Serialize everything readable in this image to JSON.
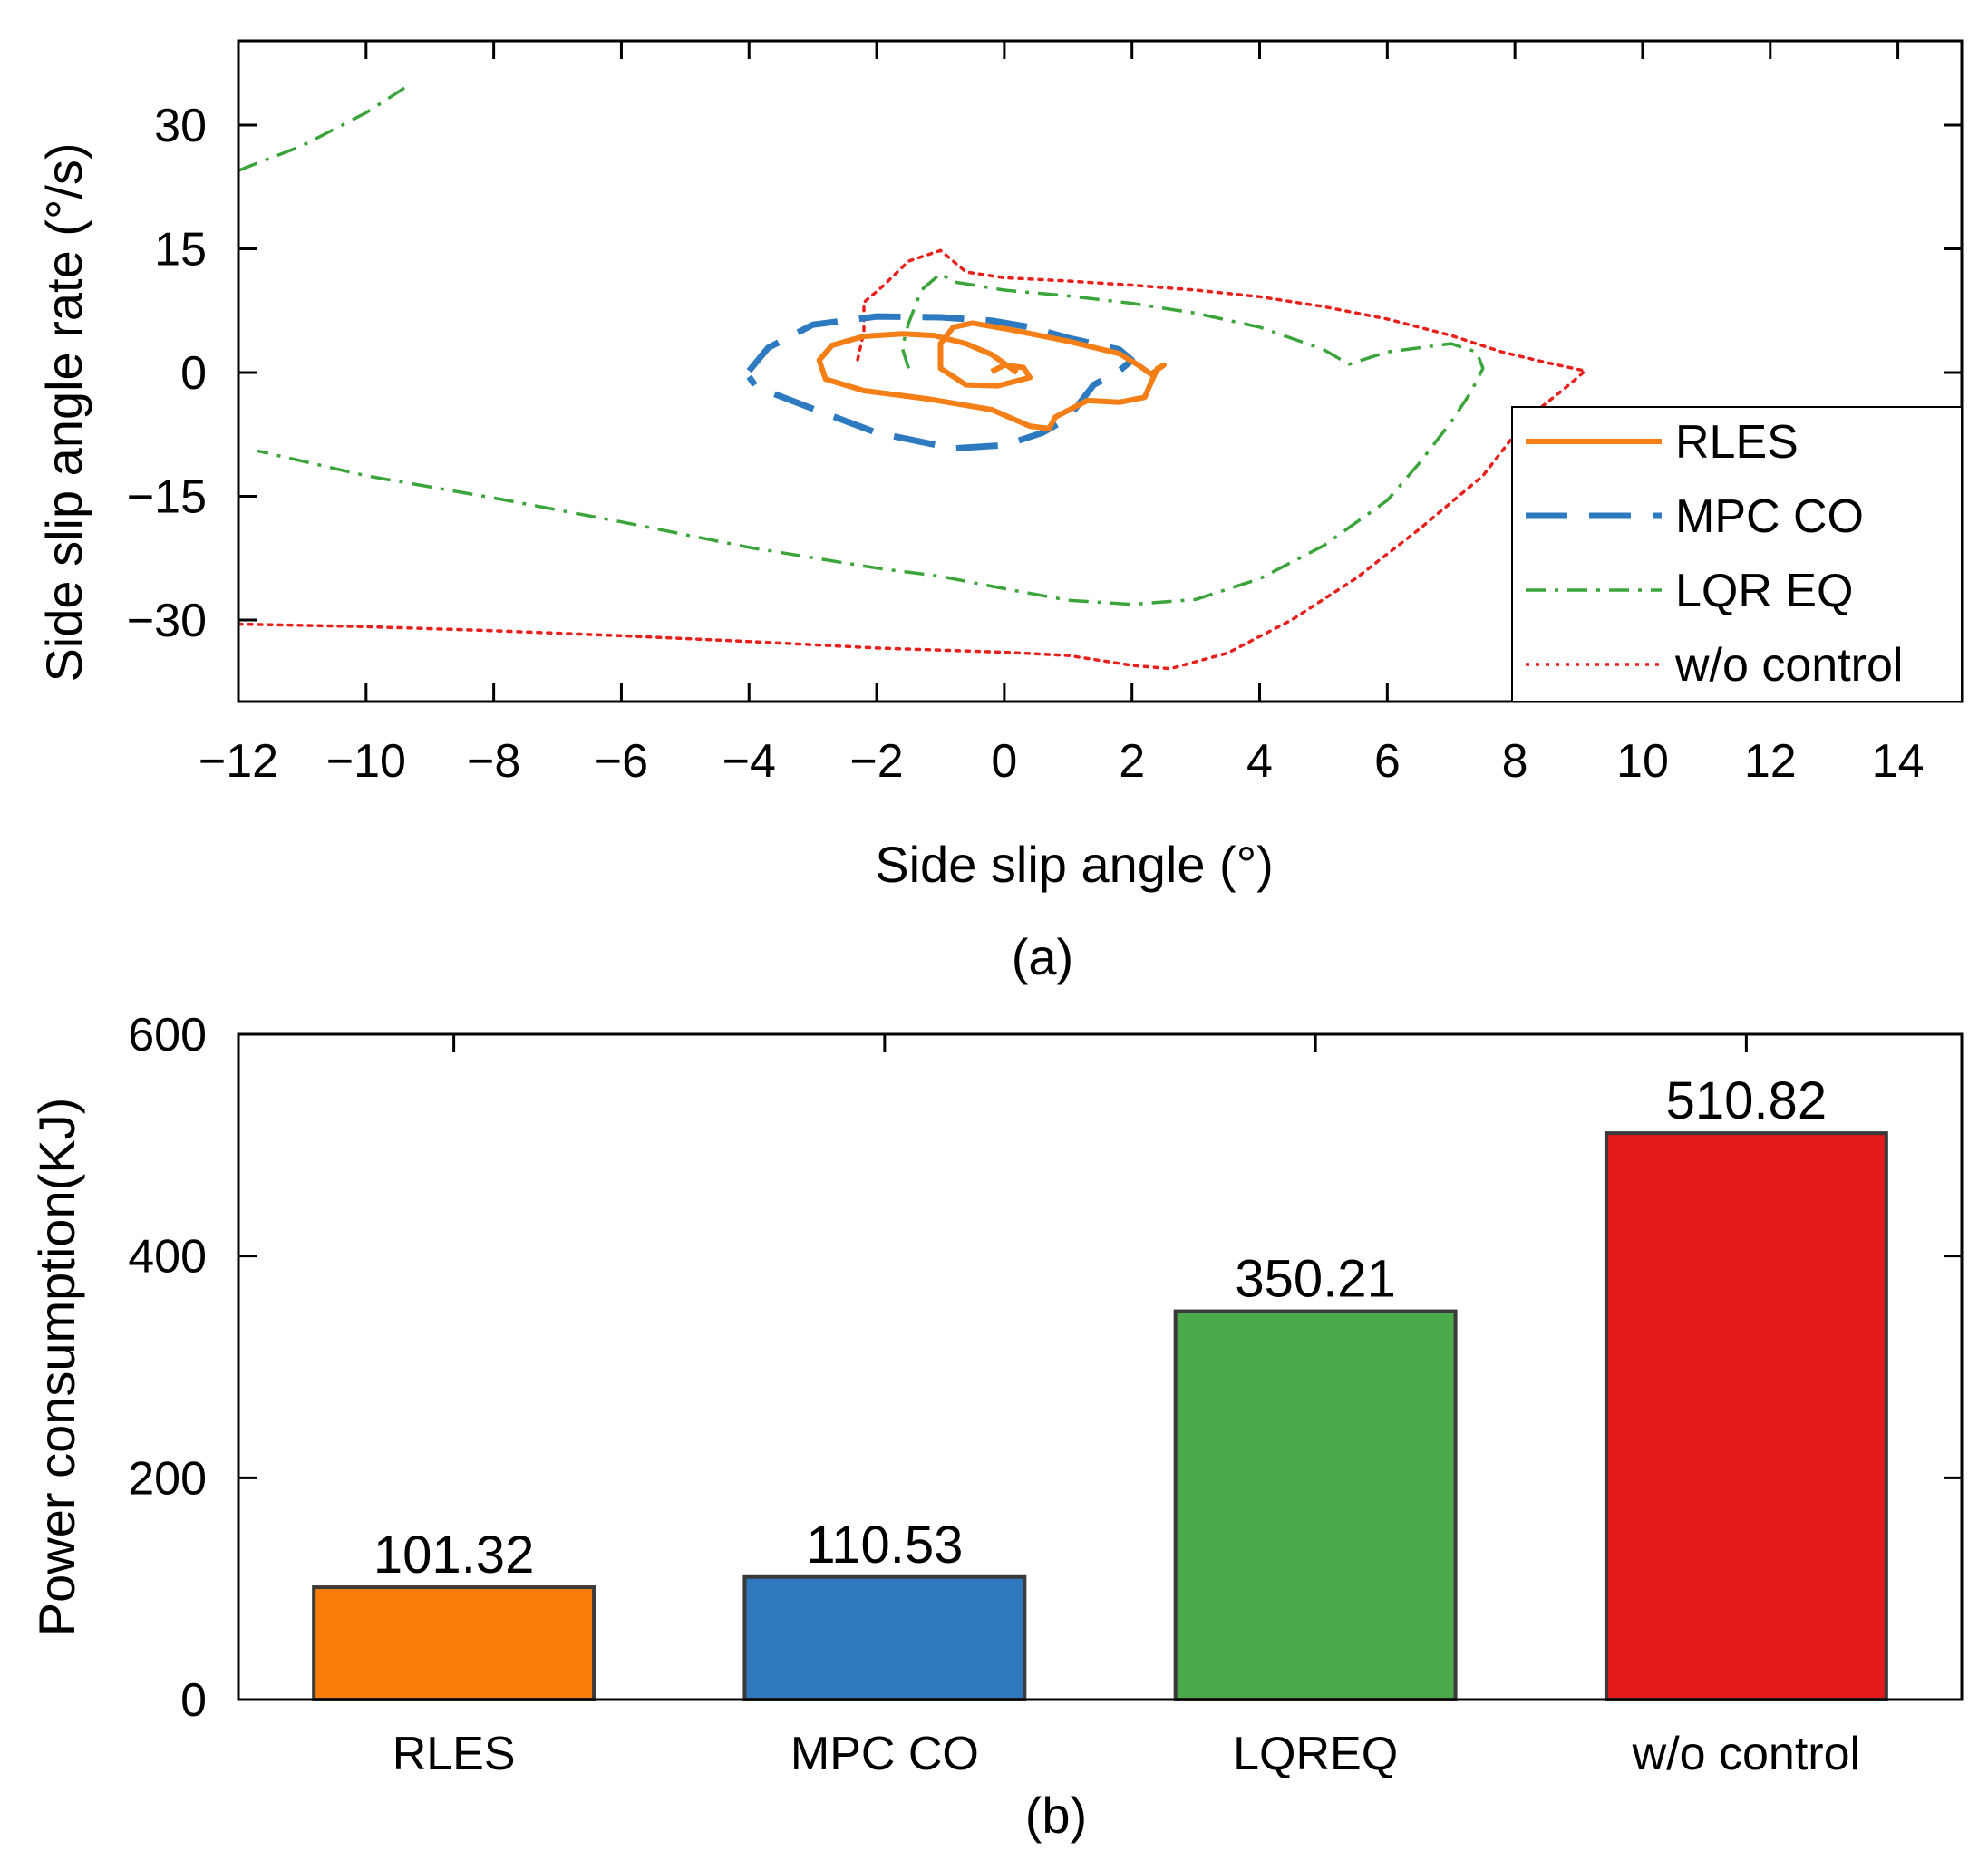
{
  "chart_data": [
    {
      "type": "line",
      "panel_label": "(a)",
      "xlabel": "Side slip angle (°)",
      "ylabel": "Side slip angle rate (°/s)",
      "xlim": [
        -12,
        15
      ],
      "ylim": [
        -40,
        40
      ],
      "xticks": [
        -12,
        -10,
        -8,
        -6,
        -4,
        -2,
        0,
        2,
        4,
        6,
        8,
        10,
        12,
        14
      ],
      "xtick_labels": [
        "−12",
        "−10",
        "−8",
        "−6",
        "−4",
        "−2",
        "0",
        "2",
        "4",
        "6",
        "8",
        "10",
        "12",
        "14"
      ],
      "yticks": [
        30,
        15,
        0,
        -15,
        -30
      ],
      "ytick_labels": [
        "30",
        "15",
        "0",
        "−15",
        "−30"
      ],
      "grid": false,
      "legend_position": "lower-right",
      "series": [
        {
          "name": "RLES",
          "color": "#f57f17",
          "style": "solid",
          "points": [
            [
              0.2,
              0
            ],
            [
              -0.2,
              2.2
            ],
            [
              -0.6,
              3.5
            ],
            [
              -1.1,
              4.5
            ],
            [
              -1.6,
              4.7
            ],
            [
              -2.2,
              4.4
            ],
            [
              -2.7,
              3.3
            ],
            [
              -2.9,
              1.5
            ],
            [
              -2.8,
              -0.8
            ],
            [
              -2.2,
              -2.2
            ],
            [
              -1.2,
              -3.2
            ],
            [
              -0.2,
              -4.5
            ],
            [
              0.4,
              -6.5
            ],
            [
              0.7,
              -6.8
            ],
            [
              0.8,
              -5.4
            ],
            [
              1.3,
              -3.4
            ],
            [
              1.8,
              -3.6
            ],
            [
              2.2,
              -3.0
            ],
            [
              2.3,
              -1.2
            ],
            [
              2.4,
              0.5
            ],
            [
              2.5,
              0.9
            ],
            [
              2.3,
              -0.2
            ],
            [
              2.1,
              0.9
            ],
            [
              1.8,
              2.3
            ],
            [
              1.0,
              3.8
            ],
            [
              0.1,
              5.2
            ],
            [
              -0.5,
              6.0
            ],
            [
              -0.8,
              5.5
            ],
            [
              -1.0,
              3.5
            ],
            [
              -1.0,
              0.5
            ],
            [
              -0.6,
              -1.5
            ],
            [
              -0.1,
              -1.6
            ],
            [
              0.4,
              -0.6
            ],
            [
              0.3,
              0.6
            ],
            [
              0.0,
              0.9
            ],
            [
              -0.2,
              0.1
            ]
          ]
        },
        {
          "name": "MPC CO",
          "color": "#2e7ac0",
          "style": "dashed",
          "points": [
            [
              -4.0,
              0.2
            ],
            [
              -3.7,
              3.0
            ],
            [
              -3.0,
              5.8
            ],
            [
              -2.0,
              6.8
            ],
            [
              -1.0,
              6.7
            ],
            [
              -0.2,
              6.3
            ],
            [
              0.4,
              5.5
            ],
            [
              1.0,
              4.2
            ],
            [
              1.8,
              2.8
            ],
            [
              2.0,
              1.5
            ],
            [
              1.8,
              0.2
            ],
            [
              1.4,
              -1.5
            ],
            [
              1.2,
              -3.5
            ],
            [
              1.0,
              -5.5
            ],
            [
              0.6,
              -7.3
            ],
            [
              0.0,
              -8.8
            ],
            [
              -0.8,
              -9.2
            ],
            [
              -2.0,
              -7.3
            ],
            [
              -3.0,
              -4.4
            ],
            [
              -3.6,
              -2.6
            ],
            [
              -3.9,
              -1.6
            ],
            [
              -4.0,
              -0.5
            ]
          ]
        },
        {
          "name": "LQR EQ",
          "color": "#3ba53b",
          "style": "dashdot",
          "points": [
            [
              -12,
              24.5
            ],
            [
              -11.0,
              27.5
            ],
            [
              -10.5,
              29.5
            ],
            [
              -10.0,
              31.5
            ],
            [
              -9.4,
              34.5
            ]
          ]
        },
        {
          "name": "",
          "color": "#3ba53b",
          "style": "dashdot",
          "points": [
            [
              -1.5,
              0.5
            ],
            [
              -1.6,
              3.0
            ],
            [
              -1.5,
              6.0
            ],
            [
              -1.3,
              10.0
            ],
            [
              -1.0,
              12.0
            ],
            [
              -0.8,
              11.0
            ],
            [
              0.0,
              10.0
            ],
            [
              1.0,
              9.3
            ],
            [
              2.0,
              8.4
            ],
            [
              3.0,
              7.2
            ],
            [
              4.0,
              5.5
            ],
            [
              5.0,
              2.8
            ],
            [
              5.4,
              1.0
            ],
            [
              6.0,
              2.5
            ],
            [
              7.0,
              3.5
            ],
            [
              7.4,
              2.5
            ],
            [
              7.5,
              0.5
            ],
            [
              7.3,
              -2.5
            ],
            [
              7.0,
              -6.0
            ],
            [
              6.5,
              -11.0
            ],
            [
              6.0,
              -15.5
            ],
            [
              5.0,
              -21.0
            ],
            [
              4.0,
              -25.0
            ],
            [
              3.0,
              -27.5
            ],
            [
              2.0,
              -28.1
            ],
            [
              1.0,
              -27.6
            ],
            [
              0.0,
              -26.2
            ],
            [
              -1.0,
              -24.7
            ],
            [
              -2.0,
              -23.7
            ],
            [
              -4.0,
              -21.2
            ],
            [
              -6.0,
              -18.1
            ],
            [
              -8.0,
              -15.2
            ],
            [
              -10.0,
              -12.5
            ],
            [
              -11.7,
              -9.5
            ]
          ]
        },
        {
          "name": "w/o control",
          "color": "#e8201c",
          "style": "dotted",
          "points": [
            [
              -12,
              -30.5
            ],
            [
              -10,
              -30.8
            ],
            [
              -8,
              -31.3
            ],
            [
              -6,
              -31.9
            ],
            [
              -4,
              -32.6
            ],
            [
              -2,
              -33.4
            ],
            [
              0,
              -33.9
            ],
            [
              1,
              -34.3
            ],
            [
              2,
              -35.5
            ],
            [
              2.6,
              -35.9
            ],
            [
              3.5,
              -34.0
            ],
            [
              4.5,
              -30.0
            ],
            [
              5.5,
              -25.0
            ],
            [
              6.5,
              -19.0
            ],
            [
              7.5,
              -12.5
            ],
            [
              8.2,
              -5.5
            ],
            [
              8.8,
              -1.8
            ],
            [
              9.1,
              0.2
            ],
            [
              8.5,
              1.2
            ],
            [
              7.8,
              2.5
            ],
            [
              7,
              4.5
            ],
            [
              6,
              6.5
            ],
            [
              5,
              8.0
            ],
            [
              4,
              9.2
            ],
            [
              3,
              10.0
            ],
            [
              2,
              10.6
            ],
            [
              1,
              11.1
            ],
            [
              0,
              11.5
            ],
            [
              -0.6,
              12.2
            ],
            [
              -1.0,
              14.8
            ],
            [
              -1.5,
              13.5
            ],
            [
              -1.9,
              10.5
            ],
            [
              -2.2,
              8.5
            ],
            [
              -2.2,
              5.0
            ],
            [
              -2.3,
              1.5
            ]
          ]
        }
      ]
    },
    {
      "type": "bar",
      "panel_label": "(b)",
      "xlabel": "",
      "ylabel": "Power consumption(KJ)",
      "ylim": [
        0,
        600
      ],
      "yticks": [
        0,
        200,
        400,
        600
      ],
      "categories": [
        "RLES",
        "MPC CO",
        "LQREQ",
        "w/o control"
      ],
      "values": [
        101.32,
        110.53,
        350.21,
        510.82
      ],
      "value_labels": [
        "101.32",
        "110.53",
        "350.21",
        "510.82"
      ],
      "colors": [
        "#f97d0b",
        "#2f78bd",
        "#4bab4b",
        "#e31a1a"
      ],
      "grid": false
    }
  ]
}
